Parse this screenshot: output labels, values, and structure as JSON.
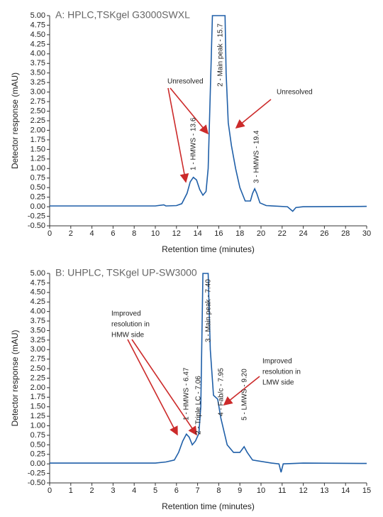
{
  "chart_data": [
    {
      "type": "line",
      "title": "A: HPLC,TSKgel G3000SWXL",
      "xlabel": "Retention time (minutes)",
      "ylabel": "Detector response (mAU)",
      "x": [
        0,
        10,
        10.8,
        11,
        12,
        12.5,
        13,
        13.3,
        13.6,
        13.9,
        14.2,
        14.5,
        14.8,
        15.0,
        15.2,
        15.4,
        16.6,
        16.7,
        16.9,
        17.2,
        17.6,
        18.0,
        18.5,
        19.0,
        19.2,
        19.4,
        19.6,
        19.9,
        20.5,
        22.5,
        23,
        23.3,
        24,
        30
      ],
      "series": [
        {
          "color": "#1f5fa8",
          "values": [
            0.02,
            0.02,
            0.05,
            0.02,
            0.03,
            0.08,
            0.35,
            0.65,
            0.77,
            0.7,
            0.45,
            0.3,
            0.4,
            1.0,
            3.0,
            5.0,
            5.0,
            3.5,
            2.2,
            1.6,
            1.0,
            0.5,
            0.15,
            0.15,
            0.35,
            0.47,
            0.35,
            0.1,
            0.03,
            0.0,
            -0.12,
            -0.02,
            0.0,
            0.01
          ]
        }
      ],
      "xlim": [
        0,
        30
      ],
      "xticks": [
        0,
        2,
        4,
        6,
        8,
        10,
        12,
        14,
        16,
        18,
        20,
        22,
        24,
        26,
        28,
        30
      ],
      "ylim": [
        -0.5,
        5
      ],
      "yticks": [
        {
          "value": -0.5,
          "label": "-0.50"
        },
        {
          "value": -0.25,
          "label": "-0.25"
        },
        {
          "value": 0,
          "label": "0.00"
        },
        {
          "value": 0.25,
          "label": "0.25"
        },
        {
          "value": 0.5,
          "label": "0.50"
        },
        {
          "value": 0.75,
          "label": "0.75"
        },
        {
          "value": 1,
          "label": "1.00"
        },
        {
          "value": 1.25,
          "label": "1.25"
        },
        {
          "value": 1.5,
          "label": "1.50"
        },
        {
          "value": 1.75,
          "label": "1.75"
        },
        {
          "value": 2,
          "label": "2.00"
        },
        {
          "value": 2.25,
          "label": "2.25"
        },
        {
          "value": 2.5,
          "label": "2.50"
        },
        {
          "value": 2.75,
          "label": "2.75"
        },
        {
          "value": 3,
          "label": "3.00"
        },
        {
          "value": 3.25,
          "label": "3.25"
        },
        {
          "value": 3.5,
          "label": "3.50"
        },
        {
          "value": 3.75,
          "label": "3.75"
        },
        {
          "value": 4,
          "label": "4.00"
        },
        {
          "value": 4.25,
          "label": "4.25"
        },
        {
          "value": 4.5,
          "label": "4.50"
        },
        {
          "value": 4.75,
          "label": "4.75"
        },
        {
          "value": 5,
          "label": "5.00"
        }
      ],
      "annotations": [
        "Unresolved",
        "Unresolved",
        "1 - HMWS - 13.6",
        "2 - Main peak - 15.7",
        "3 - HMWS - 19.4"
      ]
    },
    {
      "type": "line",
      "title": "B: UHPLC, TSKgel UP-SW3000",
      "xlabel": "Retention time (minutes)",
      "ylabel": "Detector response (mAU)",
      "x": [
        0,
        5,
        5.5,
        5.9,
        6.1,
        6.3,
        6.47,
        6.6,
        6.75,
        6.9,
        7.06,
        7.15,
        7.25,
        7.5,
        7.6,
        7.75,
        7.95,
        8.1,
        8.4,
        8.7,
        9.0,
        9.2,
        9.35,
        9.6,
        10.5,
        10.85,
        10.95,
        11.05,
        12,
        15
      ],
      "series": [
        {
          "color": "#1f5fa8",
          "values": [
            0.02,
            0.02,
            0.05,
            0.1,
            0.3,
            0.6,
            0.78,
            0.7,
            0.5,
            0.6,
            0.8,
            1.5,
            5.0,
            5.0,
            3.0,
            1.8,
            1.7,
            1.2,
            0.5,
            0.3,
            0.3,
            0.45,
            0.3,
            0.1,
            0.02,
            0.0,
            -0.22,
            0.0,
            0.02,
            0.01
          ]
        }
      ],
      "xlim": [
        0,
        15
      ],
      "xticks": [
        0,
        1,
        2,
        3,
        4,
        5,
        6,
        7,
        8,
        9,
        10,
        11,
        12,
        13,
        14,
        15
      ],
      "ylim": [
        -0.5,
        5
      ],
      "yticks": [
        {
          "value": -0.5,
          "label": "-0.50"
        },
        {
          "value": -0.25,
          "label": "-0.25"
        },
        {
          "value": 0,
          "label": "0.00"
        },
        {
          "value": 0.25,
          "label": "0.25"
        },
        {
          "value": 0.5,
          "label": "0.50"
        },
        {
          "value": 0.75,
          "label": "0.75"
        },
        {
          "value": 1,
          "label": "1.00"
        },
        {
          "value": 1.25,
          "label": "1.25"
        },
        {
          "value": 1.5,
          "label": "1.50"
        },
        {
          "value": 1.75,
          "label": "1.75"
        },
        {
          "value": 2,
          "label": "2.00"
        },
        {
          "value": 2.25,
          "label": "2.25"
        },
        {
          "value": 2.5,
          "label": "2.50"
        },
        {
          "value": 2.75,
          "label": "2.75"
        },
        {
          "value": 3,
          "label": "3.00"
        },
        {
          "value": 3.25,
          "label": "3.25"
        },
        {
          "value": 3.5,
          "label": "3.50"
        },
        {
          "value": 3.75,
          "label": "3.75"
        },
        {
          "value": 4,
          "label": "4.00"
        },
        {
          "value": 4.25,
          "label": "4.25"
        },
        {
          "value": 4.5,
          "label": "4.50"
        },
        {
          "value": 4.75,
          "label": "4.75"
        },
        {
          "value": 5,
          "label": "5.00"
        }
      ],
      "annotations": [
        [
          "Improved",
          "resolution in",
          "HMW side"
        ],
        [
          "Improved",
          "resolution in",
          "LMW side"
        ],
        "1 - HMWS - 6.47",
        "2 - Triple LC - 7.06",
        "3 - Main peak - 7.40",
        "4 - Fab/c - 7.95",
        "5 - LMWS - 9.20"
      ]
    }
  ]
}
